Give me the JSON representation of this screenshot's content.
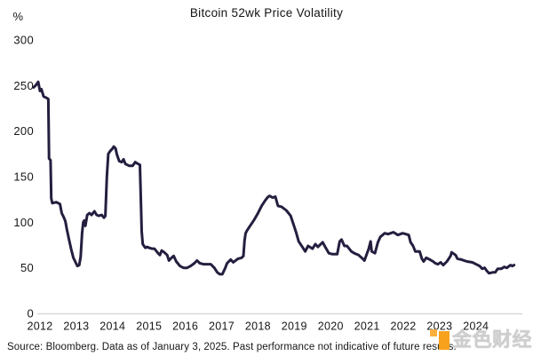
{
  "header": {
    "title": "Bitcoin 52wk Price Volatility"
  },
  "chart_data": {
    "type": "line",
    "title": "Bitcoin 52wk Price Volatility",
    "unit_label": "%",
    "xlabel": "",
    "ylabel": "%",
    "ylim": [
      0,
      300
    ],
    "xlim": [
      2011.8,
      2025.1
    ],
    "grid": false,
    "legend_position": "none",
    "y_ticks": [
      300,
      250,
      200,
      150,
      100,
      50,
      0
    ],
    "x_tick_labels": [
      "2012",
      "2013",
      "2014",
      "2015",
      "2016",
      "2017",
      "2018",
      "2019",
      "2020",
      "2021",
      "2022",
      "2023",
      "2024"
    ],
    "axis_color": "#d8d8d8",
    "series": [
      {
        "name": "Bitcoin 52-week price volatility (%)",
        "color": "#251e3f",
        "points": [
          [
            2011.83,
            248
          ],
          [
            2011.9,
            251
          ],
          [
            2011.95,
            254
          ],
          [
            2012.0,
            244
          ],
          [
            2012.04,
            246
          ],
          [
            2012.1,
            238
          ],
          [
            2012.2,
            236
          ],
          [
            2012.23,
            235
          ],
          [
            2012.25,
            170
          ],
          [
            2012.29,
            168
          ],
          [
            2012.31,
            126
          ],
          [
            2012.34,
            121
          ],
          [
            2012.45,
            122
          ],
          [
            2012.55,
            120
          ],
          [
            2012.6,
            110
          ],
          [
            2012.66,
            105
          ],
          [
            2012.7,
            101
          ],
          [
            2012.74,
            92
          ],
          [
            2012.8,
            81
          ],
          [
            2012.86,
            70
          ],
          [
            2012.92,
            61
          ],
          [
            2012.98,
            56
          ],
          [
            2013.03,
            52
          ],
          [
            2013.08,
            53
          ],
          [
            2013.12,
            62
          ],
          [
            2013.16,
            88
          ],
          [
            2013.19,
            100
          ],
          [
            2013.22,
            102
          ],
          [
            2013.25,
            96
          ],
          [
            2013.3,
            108
          ],
          [
            2013.36,
            110
          ],
          [
            2013.42,
            108
          ],
          [
            2013.5,
            112
          ],
          [
            2013.56,
            108
          ],
          [
            2013.62,
            107
          ],
          [
            2013.7,
            108
          ],
          [
            2013.76,
            105
          ],
          [
            2013.8,
            107
          ],
          [
            2013.84,
            150
          ],
          [
            2013.88,
            175
          ],
          [
            2013.93,
            178
          ],
          [
            2014.0,
            181
          ],
          [
            2014.03,
            183
          ],
          [
            2014.08,
            181
          ],
          [
            2014.12,
            174
          ],
          [
            2014.18,
            167
          ],
          [
            2014.25,
            166
          ],
          [
            2014.3,
            169
          ],
          [
            2014.35,
            164
          ],
          [
            2014.45,
            162
          ],
          [
            2014.55,
            162
          ],
          [
            2014.62,
            166
          ],
          [
            2014.7,
            164
          ],
          [
            2014.75,
            163
          ],
          [
            2014.78,
            120
          ],
          [
            2014.8,
            90
          ],
          [
            2014.83,
            76
          ],
          [
            2014.9,
            72
          ],
          [
            2014.95,
            73
          ],
          [
            2015.0,
            72
          ],
          [
            2015.08,
            71
          ],
          [
            2015.15,
            71
          ],
          [
            2015.25,
            66
          ],
          [
            2015.3,
            64
          ],
          [
            2015.35,
            69
          ],
          [
            2015.42,
            67
          ],
          [
            2015.5,
            64
          ],
          [
            2015.55,
            58
          ],
          [
            2015.62,
            61
          ],
          [
            2015.68,
            63
          ],
          [
            2015.75,
            57
          ],
          [
            2015.85,
            52
          ],
          [
            2015.95,
            50
          ],
          [
            2016.05,
            50
          ],
          [
            2016.15,
            52
          ],
          [
            2016.25,
            55
          ],
          [
            2016.32,
            58
          ],
          [
            2016.4,
            55
          ],
          [
            2016.5,
            54
          ],
          [
            2016.6,
            54
          ],
          [
            2016.7,
            54
          ],
          [
            2016.8,
            50
          ],
          [
            2016.88,
            45
          ],
          [
            2016.95,
            43
          ],
          [
            2017.02,
            43
          ],
          [
            2017.1,
            50
          ],
          [
            2017.15,
            55
          ],
          [
            2017.25,
            59
          ],
          [
            2017.32,
            56
          ],
          [
            2017.45,
            60
          ],
          [
            2017.55,
            61
          ],
          [
            2017.6,
            63
          ],
          [
            2017.63,
            80
          ],
          [
            2017.66,
            88
          ],
          [
            2017.7,
            91
          ],
          [
            2017.8,
            97
          ],
          [
            2017.9,
            103
          ],
          [
            2018.0,
            110
          ],
          [
            2018.1,
            118
          ],
          [
            2018.2,
            124
          ],
          [
            2018.28,
            128
          ],
          [
            2018.32,
            129
          ],
          [
            2018.4,
            127
          ],
          [
            2018.48,
            128
          ],
          [
            2018.55,
            118
          ],
          [
            2018.65,
            117
          ],
          [
            2018.78,
            113
          ],
          [
            2018.9,
            107
          ],
          [
            2019.0,
            95
          ],
          [
            2019.05,
            89
          ],
          [
            2019.12,
            79
          ],
          [
            2019.22,
            73
          ],
          [
            2019.3,
            68
          ],
          [
            2019.38,
            74
          ],
          [
            2019.5,
            71
          ],
          [
            2019.58,
            76
          ],
          [
            2019.65,
            73
          ],
          [
            2019.78,
            78
          ],
          [
            2019.85,
            73
          ],
          [
            2019.95,
            66
          ],
          [
            2020.05,
            65
          ],
          [
            2020.18,
            65
          ],
          [
            2020.25,
            79
          ],
          [
            2020.3,
            81
          ],
          [
            2020.38,
            74
          ],
          [
            2020.45,
            74
          ],
          [
            2020.57,
            68
          ],
          [
            2020.65,
            66
          ],
          [
            2020.77,
            64
          ],
          [
            2020.88,
            60
          ],
          [
            2020.93,
            58
          ],
          [
            2021.05,
            71
          ],
          [
            2021.1,
            79
          ],
          [
            2021.13,
            68
          ],
          [
            2021.22,
            66
          ],
          [
            2021.3,
            78
          ],
          [
            2021.37,
            84
          ],
          [
            2021.49,
            88
          ],
          [
            2021.58,
            87
          ],
          [
            2021.73,
            89
          ],
          [
            2021.85,
            86
          ],
          [
            2021.98,
            88
          ],
          [
            2022.07,
            87
          ],
          [
            2022.15,
            86
          ],
          [
            2022.2,
            78
          ],
          [
            2022.27,
            74
          ],
          [
            2022.33,
            68
          ],
          [
            2022.45,
            68
          ],
          [
            2022.51,
            60
          ],
          [
            2022.56,
            57
          ],
          [
            2022.63,
            61
          ],
          [
            2022.73,
            59
          ],
          [
            2022.82,
            57
          ],
          [
            2022.88,
            55
          ],
          [
            2022.95,
            54
          ],
          [
            2023.03,
            56
          ],
          [
            2023.1,
            53
          ],
          [
            2023.2,
            57
          ],
          [
            2023.3,
            63
          ],
          [
            2023.33,
            67
          ],
          [
            2023.44,
            64
          ],
          [
            2023.49,
            60
          ],
          [
            2023.6,
            59
          ],
          [
            2023.75,
            57
          ],
          [
            2023.9,
            56
          ],
          [
            2024.0,
            54
          ],
          [
            2024.1,
            52
          ],
          [
            2024.17,
            49
          ],
          [
            2024.24,
            50
          ],
          [
            2024.29,
            47
          ],
          [
            2024.36,
            44
          ],
          [
            2024.46,
            45
          ],
          [
            2024.53,
            45
          ],
          [
            2024.6,
            49
          ],
          [
            2024.7,
            49
          ],
          [
            2024.78,
            51
          ],
          [
            2024.85,
            50
          ],
          [
            2024.95,
            53
          ],
          [
            2025.0,
            52
          ],
          [
            2025.05,
            53
          ]
        ]
      }
    ]
  },
  "footer": {
    "source": "Source: Bloomberg. Data as of January 3, 2025. Past performance not indicative of future results."
  },
  "watermark": {
    "text": "金色财经",
    "icon_color_small": "#fbb03b",
    "icon_color_big": "#f7a11c",
    "text_color": "#cccccc"
  }
}
